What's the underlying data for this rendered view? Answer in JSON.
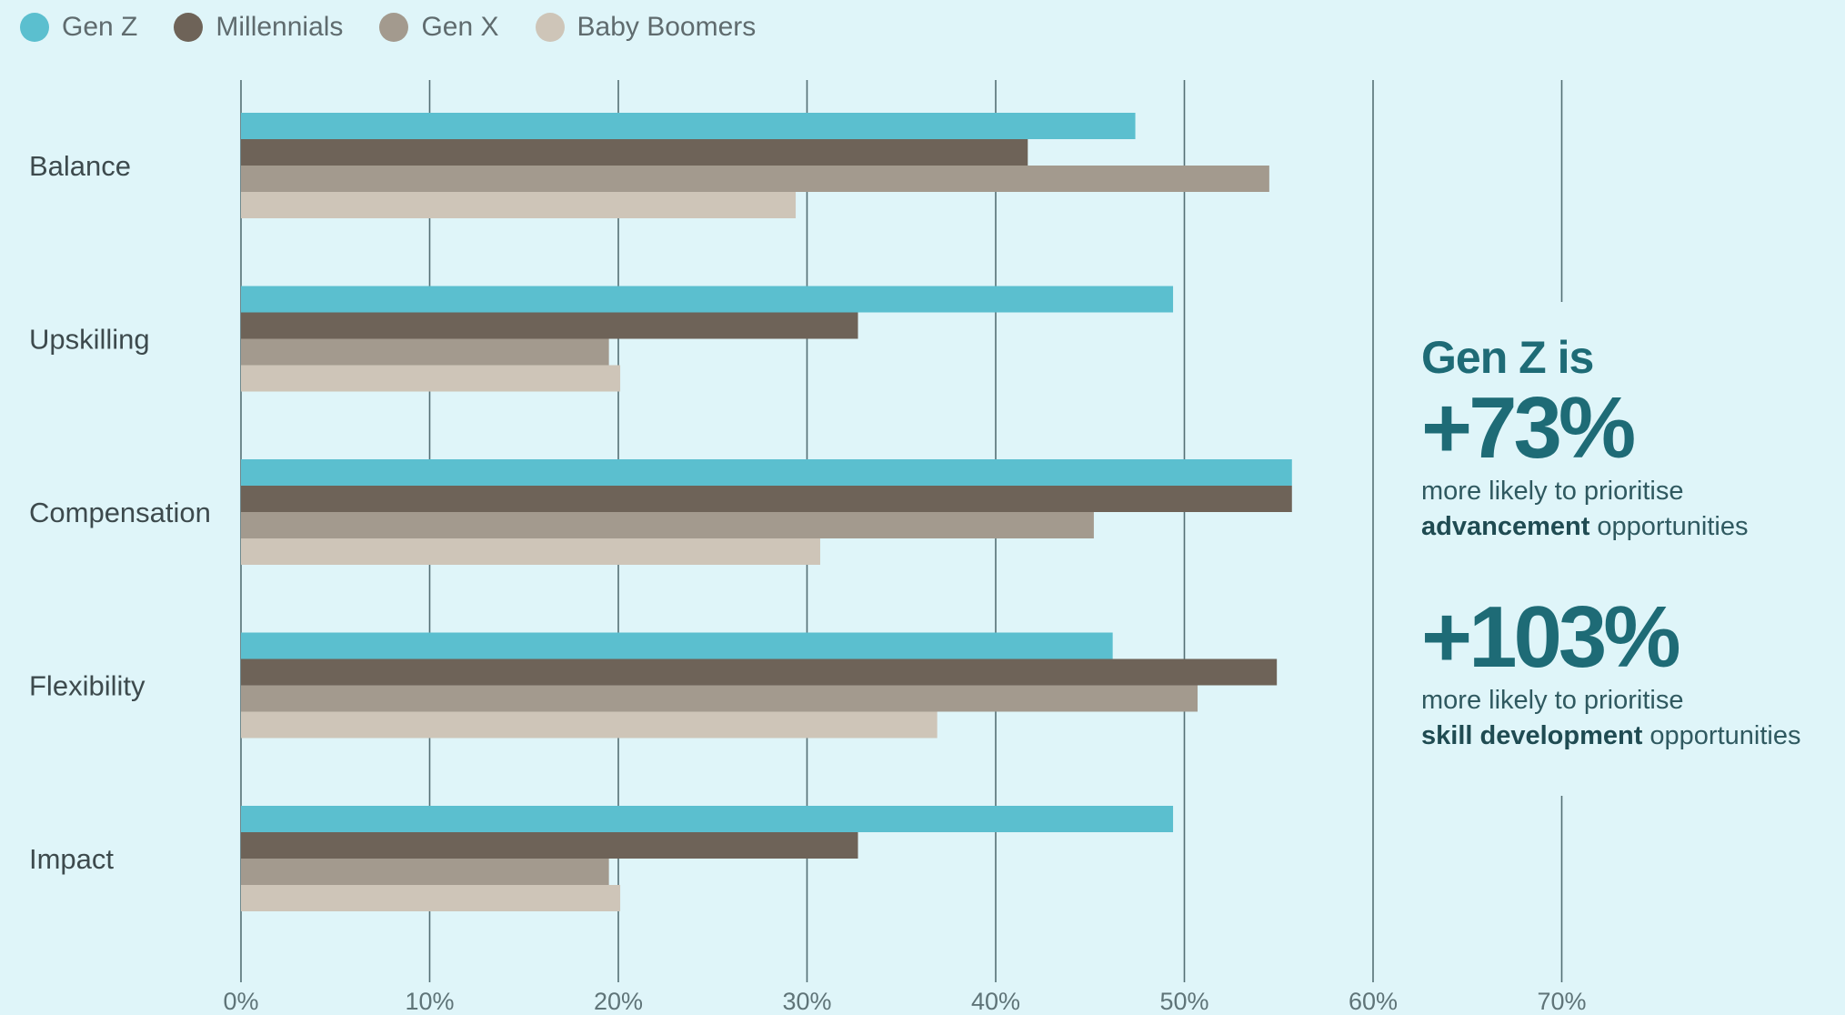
{
  "legend": {
    "items": [
      {
        "label": "Gen Z",
        "color": "#5bbfcf"
      },
      {
        "label": "Millennials",
        "color": "#6e6358"
      },
      {
        "label": "Gen X",
        "color": "#a39a8e"
      },
      {
        "label": "Baby Boomers",
        "color": "#cec5b8"
      }
    ]
  },
  "chart_data": {
    "type": "bar",
    "orientation": "horizontal",
    "categories": [
      "Balance",
      "Upskilling",
      "Compensation",
      "Flexibility",
      "Impact"
    ],
    "series": [
      {
        "name": "Gen Z",
        "color": "#5bbfcf",
        "values": [
          47.4,
          49.4,
          55.7,
          46.2,
          49.4
        ]
      },
      {
        "name": "Millennials",
        "color": "#6e6358",
        "values": [
          41.7,
          32.7,
          55.7,
          54.9,
          32.7
        ]
      },
      {
        "name": "Gen X",
        "color": "#a39a8e",
        "values": [
          54.5,
          19.5,
          45.2,
          50.7,
          19.5
        ]
      },
      {
        "name": "Baby Boomers",
        "color": "#cec5b8",
        "values": [
          29.4,
          20.1,
          30.7,
          36.9,
          20.1
        ]
      }
    ],
    "xlim": [
      0,
      70
    ],
    "xticks": [
      "0%",
      "10%",
      "20%",
      "30%",
      "40%",
      "50%",
      "60%",
      "70%"
    ],
    "grid": true,
    "legend_position": "top-left",
    "title": "",
    "xlabel": "",
    "ylabel": ""
  },
  "callout": {
    "lead": "Gen Z is",
    "stat1": "+73%",
    "text1_plain": "more likely to prioritise",
    "text1_bold": "advancement",
    "text1_tail": " opportunities",
    "stat2": "+103%",
    "text2_plain": "more likely to prioritise",
    "text2_bold": "skill development",
    "text2_tail": " opportunities"
  }
}
